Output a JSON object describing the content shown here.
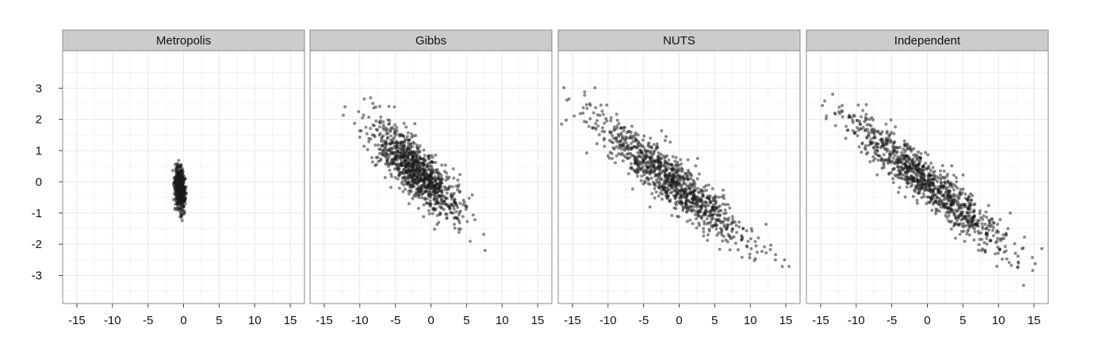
{
  "chart_data": {
    "type": "scatter",
    "grid": true,
    "point_color": "#1a1a1a",
    "strip_color": "#cccccc",
    "xlim": [
      -17,
      17
    ],
    "ylim": [
      -3.9,
      4.2
    ],
    "x_ticks": [
      -15,
      -10,
      -5,
      0,
      5,
      10,
      15
    ],
    "y_ticks": [
      3,
      2,
      1,
      0,
      -1,
      -2,
      -3
    ],
    "x_tick_labels": [
      "-15",
      "-10",
      "-5",
      "0",
      "5",
      "10",
      "15"
    ],
    "y_tick_labels": [
      "3",
      "2",
      "1",
      "0",
      "-1",
      "-2",
      "-3"
    ],
    "panels": [
      {
        "name": "Metropolis",
        "n": 700,
        "mean_x": -0.5,
        "sd_x": 0.35,
        "mean_y": -0.2,
        "sd_y": 0.32,
        "corr": -0.3
      },
      {
        "name": "Gibbs",
        "n": 1000,
        "mean_x": -2.0,
        "sd_x": 3.0,
        "mean_y": 0.35,
        "sd_y": 0.75,
        "corr": -0.8
      },
      {
        "name": "NUTS",
        "n": 1000,
        "mean_x": -1.0,
        "sd_x": 5.5,
        "mean_y": 0.0,
        "sd_y": 1.05,
        "corr": -0.92
      },
      {
        "name": "Independent",
        "n": 1000,
        "mean_x": 0.0,
        "sd_x": 5.5,
        "mean_y": 0.0,
        "sd_y": 1.05,
        "corr": -0.93
      }
    ]
  }
}
